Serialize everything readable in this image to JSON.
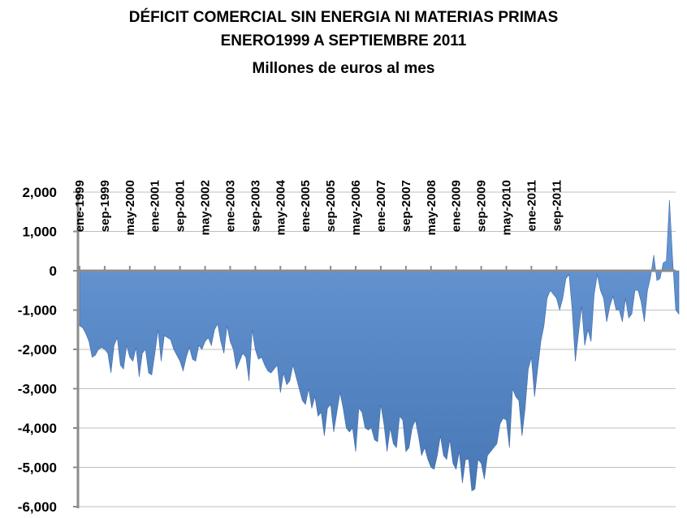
{
  "chart_data": {
    "type": "area",
    "title": "DÉFICIT COMERCIAL  SIN ENERGIA NI MATERIAS PRIMAS",
    "subtitle": "ENERO1999  A  SEPTIEMBRE 2011",
    "ylabel": "Millones de euros al mes",
    "xlabel": "",
    "ylim": [
      -6000,
      2000
    ],
    "y_ticks": [
      "2,000",
      "1,000",
      "0",
      "-1,000",
      "-2,000",
      "-3,000",
      "-4,000",
      "-5,000",
      "-6,000"
    ],
    "x_tick_labels": [
      "ene-1999",
      "sep-1999",
      "may-2000",
      "ene-2001",
      "sep-2001",
      "may-2002",
      "ene-2003",
      "sep-2003",
      "may-2004",
      "ene-2005",
      "sep-2005",
      "may-2006",
      "ene-2007",
      "sep-2007",
      "may-2008",
      "ene-2009",
      "sep-2009",
      "may-2010",
      "ene-2011",
      "sep-2011"
    ],
    "grid": true,
    "legend": "none",
    "series": [
      {
        "name": "Déficit comercial sin energía ni materias primas",
        "color": "#4f81bd",
        "values": [
          -1400,
          -1450,
          -1600,
          -1800,
          -2200,
          -2150,
          -2000,
          -1950,
          -2000,
          -2100,
          -2600,
          -1900,
          -1700,
          -2400,
          -2500,
          -1900,
          -2200,
          -2300,
          -1950,
          -2700,
          -2100,
          -2000,
          -2600,
          -2650,
          -2100,
          -1500,
          -2300,
          -1650,
          -1700,
          -1750,
          -2000,
          -2150,
          -2300,
          -2550,
          -2200,
          -1950,
          -2250,
          -2300,
          -1900,
          -2000,
          -1800,
          -1700,
          -1900,
          -1500,
          -1350,
          -1800,
          -2100,
          -1400,
          -1800,
          -2000,
          -2500,
          -2300,
          -2100,
          -2200,
          -2800,
          -1500,
          -2000,
          -2250,
          -2200,
          -2400,
          -2550,
          -2600,
          -2500,
          -2400,
          -3100,
          -2600,
          -2900,
          -2800,
          -2400,
          -2700,
          -3000,
          -3300,
          -3400,
          -3000,
          -3500,
          -3200,
          -3700,
          -3600,
          -4200,
          -3500,
          -3400,
          -4100,
          -3600,
          -3100,
          -3500,
          -4000,
          -4100,
          -4000,
          -4600,
          -3500,
          -3600,
          -4000,
          -4050,
          -4000,
          -4300,
          -4350,
          -3400,
          -3900,
          -4600,
          -4000,
          -4400,
          -4500,
          -3700,
          -3800,
          -4600,
          -4500,
          -4000,
          -3800,
          -4200,
          -4700,
          -4500,
          -4800,
          -5000,
          -5050,
          -4700,
          -4200,
          -4700,
          -4800,
          -4300,
          -4900,
          -5050,
          -4600,
          -5400,
          -4800,
          -4800,
          -5600,
          -5550,
          -4800,
          -4900,
          -5300,
          -4700,
          -4600,
          -4500,
          -4400,
          -3900,
          -3750,
          -3800,
          -4500,
          -3000,
          -3200,
          -3300,
          -4200,
          -3500,
          -2500,
          -2200,
          -3200,
          -2500,
          -1800,
          -1400,
          -700,
          -500,
          -600,
          -700,
          -1000,
          -700,
          -200,
          -100,
          -1000,
          -2300,
          -1600,
          -900,
          -1900,
          -1500,
          -1800,
          -600,
          -100,
          -500,
          -700,
          -1300,
          -900,
          -650,
          -1000,
          -1000,
          -1300,
          -700,
          -1200,
          -1100,
          -500,
          -500,
          -800,
          -1300,
          -500,
          -150,
          400,
          -250,
          -200,
          200,
          250,
          1800,
          300,
          -1000,
          -1100
        ]
      }
    ]
  }
}
